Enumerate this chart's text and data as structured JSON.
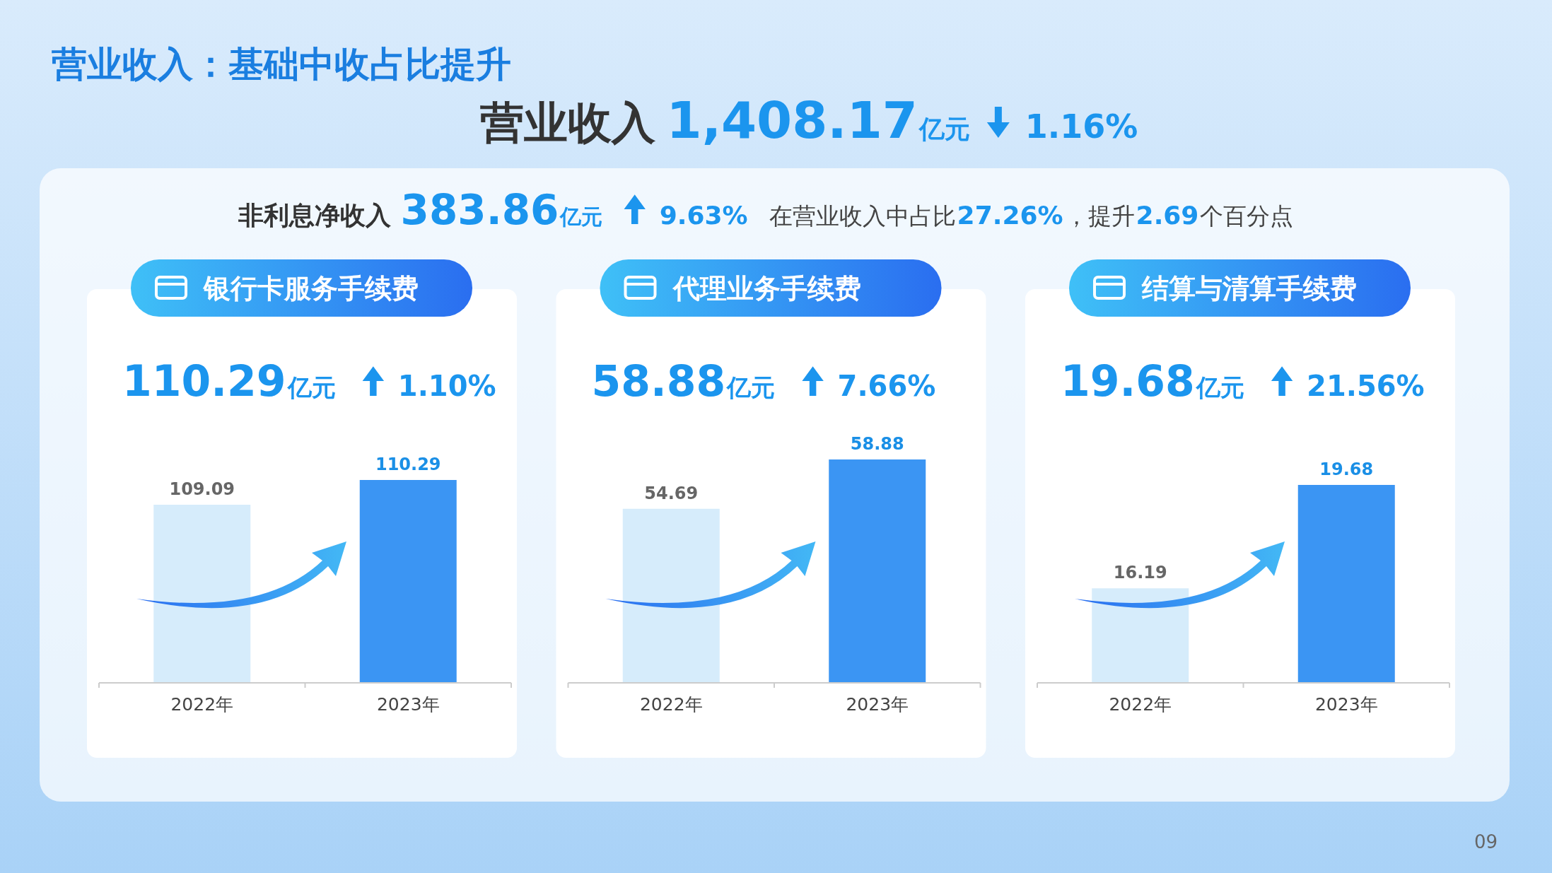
{
  "chart_data": [
    {
      "type": "other",
      "title": "营业收入：基础中收占比提升",
      "annotations": [
        "营业收入",
        "1,408.17",
        "亿元",
        "1.16%",
        "非利息净收入",
        "383.86",
        "亿元",
        "9.63%",
        "在营业收入中占比",
        "27.26%",
        "，提升",
        "2.69",
        "个百分点",
        "09"
      ]
    },
    {
      "type": "bar",
      "title": "银行卡服务手续费",
      "annotations": [
        "110.29",
        "亿元",
        "1.10%"
      ],
      "categories": [
        "2022年",
        "2023年"
      ],
      "values": [
        109.09,
        110.29
      ],
      "colors": [
        "#d6ecfb",
        "#3b95f3"
      ],
      "ylim": [
        100.45,
        110.29
      ],
      "data_labels": true,
      "tick_labels": "x"
    },
    {
      "type": "bar",
      "title": "代理业务手续费",
      "annotations": [
        "58.88",
        "亿元",
        "7.66%"
      ],
      "categories": [
        "2022年",
        "2023年"
      ],
      "values": [
        54.69,
        58.88
      ],
      "colors": [
        "#d6ecfb",
        "#3b95f3"
      ],
      "ylim": [
        39.9,
        58.88
      ],
      "data_labels": true,
      "tick_labels": "x"
    },
    {
      "type": "bar",
      "title": "结算与清算手续费",
      "annotations": [
        "19.68",
        "亿元",
        "21.56%"
      ],
      "categories": [
        "2022年",
        "2023年"
      ],
      "values": [
        16.19,
        19.68
      ],
      "colors": [
        "#d6ecfb",
        "#3b95f3"
      ],
      "ylim": [
        13,
        19.68
      ],
      "data_labels": true,
      "tick_labels": "x"
    }
  ]
}
